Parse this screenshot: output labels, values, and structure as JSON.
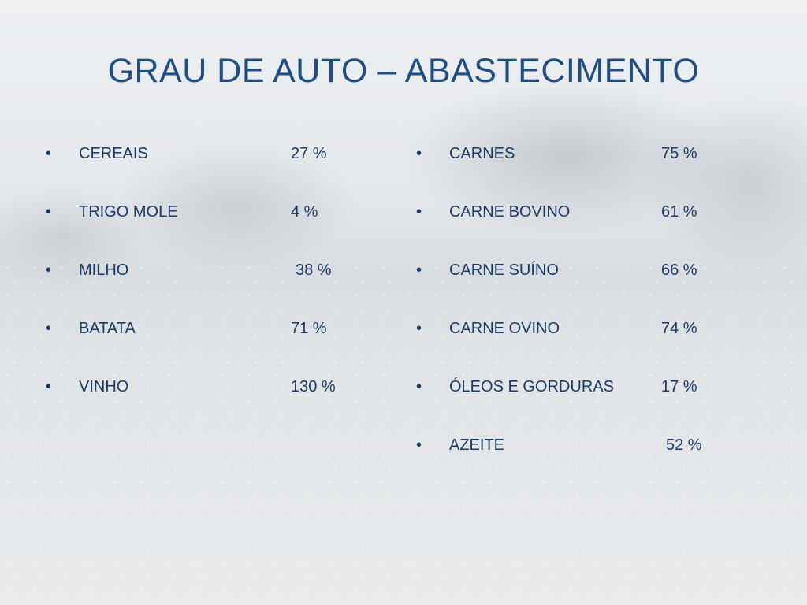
{
  "title": "GRAU DE AUTO – ABASTECIMENTO",
  "bullet": "•",
  "left_items": [
    {
      "label": "CEREAIS",
      "value": "27 %"
    },
    {
      "label": "TRIGO MOLE",
      "value": "4 %"
    },
    {
      "label": "MILHO",
      "value": "38 %"
    },
    {
      "label": "BATATA",
      "value": "71 %"
    },
    {
      "label": "VINHO",
      "value": "130 %"
    }
  ],
  "right_items": [
    {
      "label": "CARNES",
      "value": "75 %"
    },
    {
      "label": "CARNE BOVINO",
      "value": "61 %"
    },
    {
      "label": "CARNE SUÍNO",
      "value": "66 %"
    },
    {
      "label": "CARNE OVINO",
      "value": "74 %"
    },
    {
      "label": "ÓLEOS E GORDURAS",
      "value": "17 %"
    },
    {
      "label": "AZEITE",
      "value": "52 %"
    }
  ],
  "colors": {
    "title": "#1f4e86",
    "text": "#1a3a66",
    "background": "#e4e7ea"
  }
}
